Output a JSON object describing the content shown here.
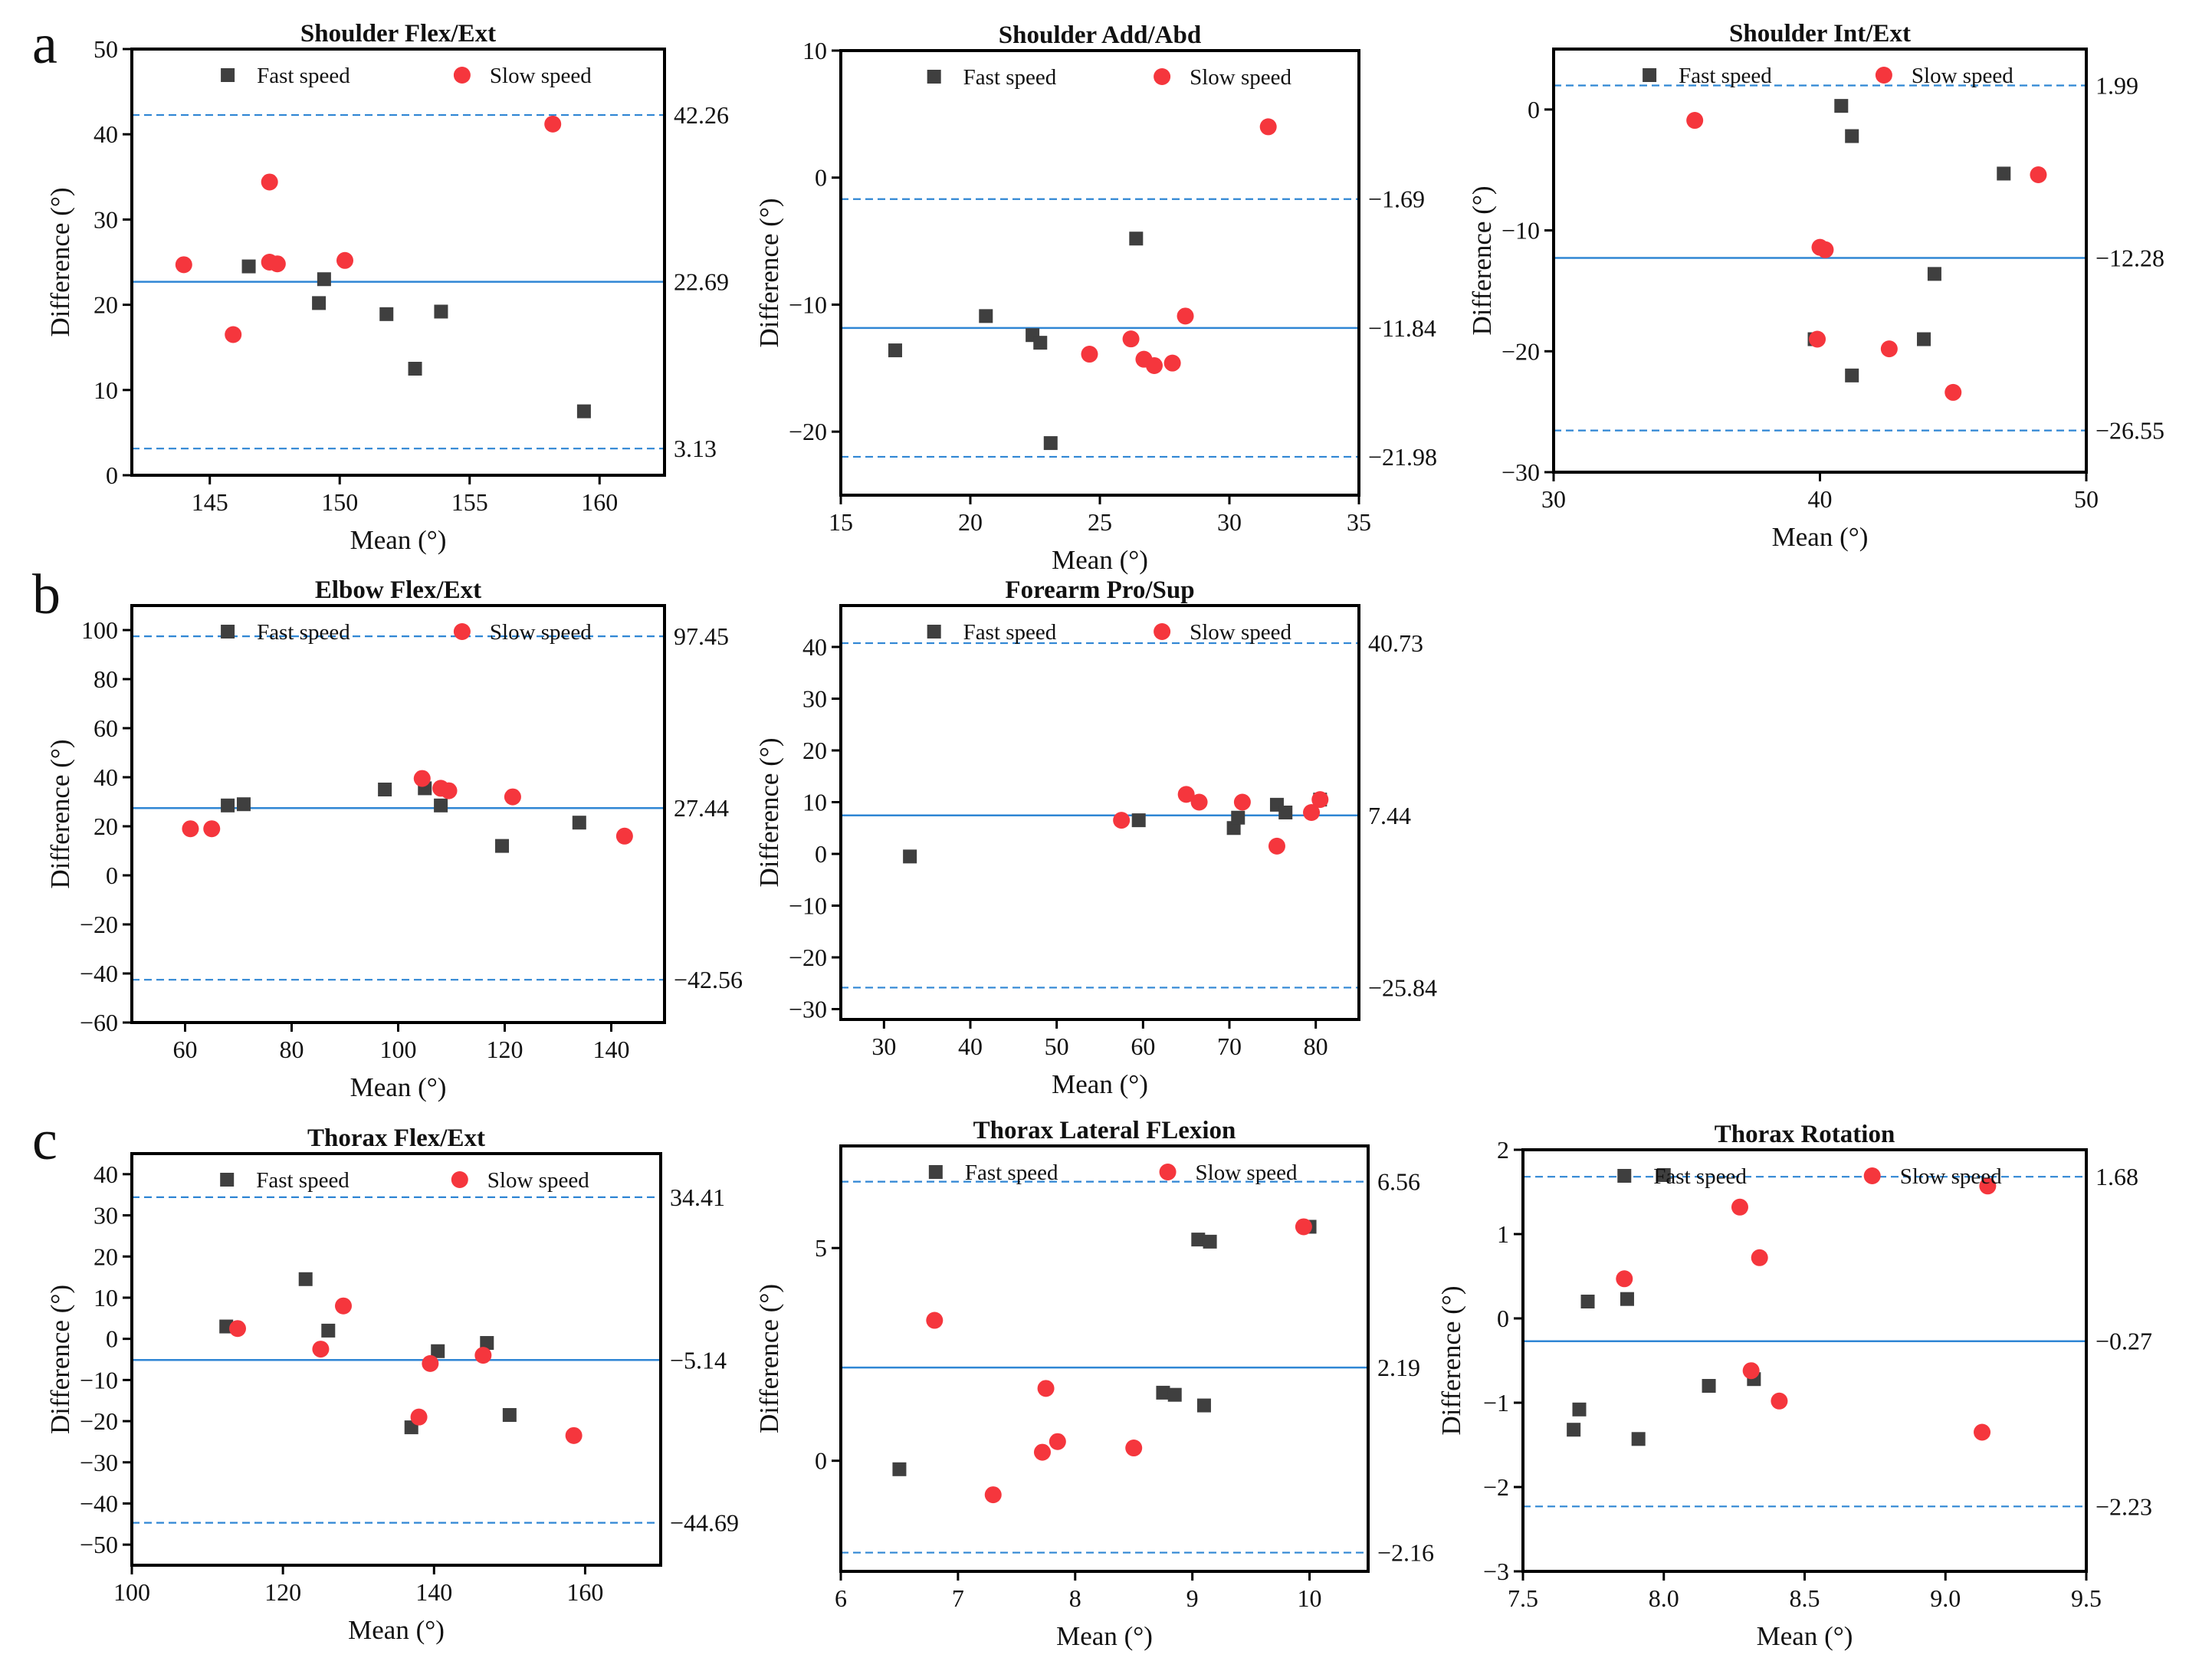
{
  "figure": {
    "panel_labels": [
      "a",
      "b",
      "c"
    ],
    "colors": {
      "fast": "#3f3f3f",
      "slow": "#f5363d",
      "mean_line": "#2f86d4",
      "loa_line": "#2f86d4",
      "axis": "#000000"
    },
    "legend_fast": "Fast speed",
    "legend_slow": "Slow speed"
  },
  "chart_data": [
    {
      "type": "scatter",
      "title": "Shoulder Flex/Ext",
      "xlabel": "Mean (°)",
      "ylabel": "Difference (°)",
      "xlim": [
        142,
        162.5
      ],
      "ylim": [
        0,
        50
      ],
      "xticks": [
        145,
        150,
        155,
        160
      ],
      "yticks": [
        0,
        10,
        20,
        30,
        40,
        50
      ],
      "mean_diff": 22.69,
      "upper_loa": 42.26,
      "lower_loa": 3.13,
      "labels": {
        "mean": "22.69",
        "upper": "42.26",
        "lower": "3.13"
      },
      "series": [
        {
          "name": "Fast speed",
          "points": [
            [
              146.5,
              24.5
            ],
            [
              149.2,
              20.2
            ],
            [
              149.4,
              23.0
            ],
            [
              151.8,
              18.9
            ],
            [
              152.9,
              12.5
            ],
            [
              153.9,
              19.2
            ],
            [
              159.4,
              7.5
            ]
          ]
        },
        {
          "name": "Slow speed",
          "points": [
            [
              144.0,
              24.7
            ],
            [
              145.9,
              16.5
            ],
            [
              147.3,
              34.4
            ],
            [
              147.3,
              25.0
            ],
            [
              147.6,
              24.8
            ],
            [
              150.2,
              25.2
            ],
            [
              158.2,
              41.2
            ]
          ]
        }
      ]
    },
    {
      "type": "scatter",
      "title": "Shoulder Add/Abd",
      "xlabel": "Mean (°)",
      "ylabel": "Difference (°)",
      "xlim": [
        15,
        35
      ],
      "ylim": [
        -25,
        10
      ],
      "xticks": [
        15,
        20,
        25,
        30,
        35
      ],
      "yticks": [
        -20,
        -10,
        0,
        10
      ],
      "mean_diff": -11.84,
      "upper_loa": -1.69,
      "lower_loa": -21.98,
      "labels": {
        "mean": "−11.84",
        "upper": "−1.69",
        "lower": "−21.98"
      },
      "series": [
        {
          "name": "Fast speed",
          "points": [
            [
              17.1,
              -13.6
            ],
            [
              20.6,
              -10.9
            ],
            [
              22.4,
              -12.4
            ],
            [
              22.7,
              -13.0
            ],
            [
              23.1,
              -20.9
            ],
            [
              26.4,
              -4.8
            ]
          ]
        },
        {
          "name": "Slow speed",
          "points": [
            [
              24.6,
              -13.9
            ],
            [
              26.2,
              -12.7
            ],
            [
              26.7,
              -14.3
            ],
            [
              27.1,
              -14.8
            ],
            [
              27.8,
              -14.6
            ],
            [
              28.3,
              -10.9
            ],
            [
              31.5,
              4.0
            ]
          ]
        }
      ]
    },
    {
      "type": "scatter",
      "title": "Shoulder Int/Ext",
      "xlabel": "Mean (°)",
      "ylabel": "Difference (°)",
      "xlim": [
        30,
        50
      ],
      "ylim": [
        -30,
        5
      ],
      "xticks": [
        30,
        40,
        50
      ],
      "yticks": [
        -30,
        -20,
        -10,
        0
      ],
      "mean_diff": -12.28,
      "upper_loa": 1.99,
      "lower_loa": -26.55,
      "labels": {
        "mean": "−12.28",
        "upper": "1.99",
        "lower": "−26.55"
      },
      "series": [
        {
          "name": "Fast speed",
          "points": [
            [
              39.8,
              -19.0
            ],
            [
              40.8,
              0.3
            ],
            [
              41.2,
              -2.2
            ],
            [
              41.2,
              -22.0
            ],
            [
              43.9,
              -19.0
            ],
            [
              44.3,
              -13.6
            ],
            [
              46.9,
              -5.3
            ]
          ]
        },
        {
          "name": "Slow speed",
          "points": [
            [
              35.3,
              -0.9
            ],
            [
              39.9,
              -19.0
            ],
            [
              40.0,
              -11.4
            ],
            [
              40.2,
              -11.6
            ],
            [
              42.6,
              -19.8
            ],
            [
              45.0,
              -23.4
            ],
            [
              48.2,
              -5.4
            ]
          ]
        }
      ]
    },
    {
      "type": "scatter",
      "title": "Elbow Flex/Ext",
      "xlabel": "Mean (°)",
      "ylabel": "Difference (°)",
      "xlim": [
        50,
        150
      ],
      "ylim": [
        -60,
        110
      ],
      "xticks": [
        60,
        80,
        100,
        120,
        140
      ],
      "yticks": [
        -60,
        -40,
        -20,
        0,
        20,
        40,
        60,
        80,
        100
      ],
      "mean_diff": 27.44,
      "upper_loa": 97.45,
      "lower_loa": -42.56,
      "labels": {
        "mean": "27.44",
        "upper": "97.45",
        "lower": "−42.56"
      },
      "series": [
        {
          "name": "Fast speed",
          "points": [
            [
              68.0,
              28.5
            ],
            [
              71.0,
              29.0
            ],
            [
              97.5,
              35.0
            ],
            [
              105.0,
              35.5
            ],
            [
              108.0,
              28.5
            ],
            [
              119.5,
              12.0
            ],
            [
              134.0,
              21.5
            ]
          ]
        },
        {
          "name": "Slow speed",
          "points": [
            [
              61.0,
              19.0
            ],
            [
              65.0,
              19.0
            ],
            [
              104.5,
              39.5
            ],
            [
              108.0,
              35.5
            ],
            [
              109.5,
              34.5
            ],
            [
              121.5,
              32.0
            ],
            [
              142.5,
              16.0
            ]
          ]
        }
      ]
    },
    {
      "type": "scatter",
      "title": "Forearm Pro/Sup",
      "xlabel": "Mean (°)",
      "ylabel": "Difference (°)",
      "xlim": [
        25,
        85
      ],
      "ylim": [
        -32,
        48
      ],
      "xticks": [
        30,
        40,
        50,
        60,
        70,
        80
      ],
      "yticks": [
        -30,
        -20,
        -10,
        0,
        10,
        20,
        30,
        40
      ],
      "mean_diff": 7.44,
      "upper_loa": 40.73,
      "lower_loa": -25.84,
      "labels": {
        "mean": "7.44",
        "upper": "40.73",
        "lower": "−25.84"
      },
      "series": [
        {
          "name": "Fast speed",
          "points": [
            [
              33.0,
              -0.5
            ],
            [
              59.5,
              6.5
            ],
            [
              70.5,
              5.0
            ],
            [
              71.0,
              7.0
            ],
            [
              75.5,
              9.5
            ],
            [
              76.5,
              8.0
            ],
            [
              80.5,
              10.5
            ]
          ]
        },
        {
          "name": "Slow speed",
          "points": [
            [
              57.5,
              6.5
            ],
            [
              65.0,
              11.5
            ],
            [
              66.5,
              10.0
            ],
            [
              71.5,
              10.0
            ],
            [
              75.5,
              1.5
            ],
            [
              79.5,
              8.0
            ],
            [
              80.5,
              10.5
            ]
          ]
        }
      ]
    },
    {
      "type": "scatter",
      "title": "Thorax Flex/Ext",
      "xlabel": "Mean (°)",
      "ylabel": "Difference (°)",
      "xlim": [
        100,
        170
      ],
      "ylim": [
        -55,
        45
      ],
      "xticks": [
        100,
        120,
        140,
        160
      ],
      "yticks": [
        -50,
        -40,
        -30,
        -20,
        -10,
        0,
        10,
        20,
        30,
        40
      ],
      "mean_diff": -5.14,
      "upper_loa": 34.41,
      "lower_loa": -44.69,
      "labels": {
        "mean": "−5.14",
        "upper": "34.41",
        "lower": "−44.69"
      },
      "series": [
        {
          "name": "Fast speed",
          "points": [
            [
              112.5,
              3.0
            ],
            [
              123.0,
              14.5
            ],
            [
              126.0,
              2.0
            ],
            [
              137.0,
              -21.5
            ],
            [
              140.5,
              -3.0
            ],
            [
              147.0,
              -1.0
            ],
            [
              150.0,
              -18.5
            ]
          ]
        },
        {
          "name": "Slow speed",
          "points": [
            [
              114.0,
              2.5
            ],
            [
              125.0,
              -2.5
            ],
            [
              128.0,
              8.0
            ],
            [
              138.0,
              -19.0
            ],
            [
              139.5,
              -6.0
            ],
            [
              146.5,
              -4.0
            ],
            [
              158.5,
              -23.5
            ]
          ]
        }
      ]
    },
    {
      "type": "scatter",
      "title": "Thorax Lateral FLexion",
      "xlabel": "Mean (°)",
      "ylabel": "Difference (°)",
      "xlim": [
        6,
        10.5
      ],
      "ylim": [
        -2.6,
        7.4
      ],
      "xticks": [
        6,
        7,
        8,
        9,
        10
      ],
      "yticks": [
        0,
        5
      ],
      "mean_diff": 2.19,
      "upper_loa": 6.56,
      "lower_loa": -2.16,
      "labels": {
        "mean": "2.19",
        "upper": "6.56",
        "lower": "−2.16"
      },
      "series": [
        {
          "name": "Fast speed",
          "points": [
            [
              6.5,
              -0.2
            ],
            [
              8.75,
              1.6
            ],
            [
              8.85,
              1.55
            ],
            [
              9.05,
              5.2
            ],
            [
              9.15,
              5.15
            ],
            [
              9.1,
              1.3
            ],
            [
              10.0,
              5.5
            ]
          ]
        },
        {
          "name": "Slow speed",
          "points": [
            [
              6.8,
              3.3
            ],
            [
              7.3,
              -0.8
            ],
            [
              7.72,
              0.2
            ],
            [
              7.75,
              1.7
            ],
            [
              7.85,
              0.45
            ],
            [
              8.5,
              0.3
            ],
            [
              9.95,
              5.5
            ]
          ]
        }
      ]
    },
    {
      "type": "scatter",
      "title": "Thorax Rotation",
      "xlabel": "Mean (°)",
      "ylabel": "Difference (°)",
      "xlim": [
        7.5,
        9.5
      ],
      "ylim": [
        -3,
        2
      ],
      "xticks": [
        7.5,
        8.0,
        8.5,
        9.0,
        9.5
      ],
      "xtick_labels": [
        "7.5",
        "8.0",
        "8.5",
        "9.0",
        "9.5"
      ],
      "yticks": [
        -3,
        -2,
        -1,
        0,
        1,
        2
      ],
      "mean_diff": -0.27,
      "upper_loa": 1.68,
      "lower_loa": -2.23,
      "labels": {
        "mean": "−0.27",
        "upper": "1.68",
        "lower": "−2.23"
      },
      "series": [
        {
          "name": "Fast speed",
          "points": [
            [
              7.68,
              -1.32
            ],
            [
              7.7,
              -1.08
            ],
            [
              7.73,
              0.2
            ],
            [
              7.87,
              0.23
            ],
            [
              7.91,
              -1.43
            ],
            [
              8.16,
              -0.8
            ],
            [
              8.32,
              -0.72
            ],
            [
              8.0,
              1.7
            ]
          ]
        },
        {
          "name": "Slow speed",
          "points": [
            [
              7.86,
              0.47
            ],
            [
              8.27,
              1.32
            ],
            [
              8.31,
              -0.62
            ],
            [
              8.34,
              0.72
            ],
            [
              8.41,
              -0.98
            ],
            [
              9.13,
              -1.35
            ],
            [
              9.15,
              1.57
            ]
          ]
        }
      ]
    }
  ]
}
